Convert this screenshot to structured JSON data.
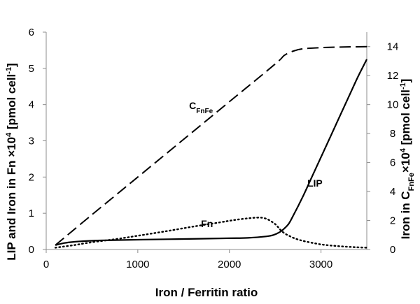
{
  "chart_data": {
    "type": "line",
    "xlabel": "Iron / Ferritin ratio",
    "ylabel_left": {
      "prefix": "LIP and Iron in Fn ×10",
      "sup": "4",
      "unit_main": " [pmol cell",
      "unit_sup": "-1",
      "unit_end": "]"
    },
    "ylabel_right": {
      "prefix": "Iron in C",
      "sub": "FnFe",
      "mid": "×10",
      "sup": "4",
      "unit_main": " [pmol cell",
      "unit_sup": "-1",
      "unit_end": "]"
    },
    "xlim": [
      0,
      3500
    ],
    "ylim_left": [
      0,
      6
    ],
    "ylim_right": [
      0,
      15
    ],
    "xticks": [
      "0",
      "1000",
      "2000",
      "3000"
    ],
    "xtick_values": [
      0,
      1000,
      2000,
      3000
    ],
    "yticks_left": [
      "0",
      "1",
      "2",
      "3",
      "4",
      "5",
      "6"
    ],
    "ytick_left_values": [
      0,
      1,
      2,
      3,
      4,
      5,
      6
    ],
    "yticks_right": [
      "0",
      "2",
      "4",
      "6",
      "8",
      "10",
      "12",
      "14"
    ],
    "ytick_right_values": [
      0,
      2,
      4,
      6,
      8,
      10,
      12,
      14
    ],
    "grid": false,
    "series": [
      {
        "name": "LIP",
        "axis": "left",
        "style": "solid",
        "x": [
          100,
          200,
          300,
          400,
          600,
          1000,
          1500,
          2000,
          2200,
          2400,
          2480,
          2550,
          2600,
          2650,
          2700,
          2800,
          2900,
          3000,
          3100,
          3200,
          3300,
          3400,
          3500
        ],
        "y": [
          0.12,
          0.18,
          0.21,
          0.23,
          0.25,
          0.27,
          0.29,
          0.31,
          0.32,
          0.36,
          0.4,
          0.48,
          0.58,
          0.72,
          0.95,
          1.45,
          2.0,
          2.55,
          3.1,
          3.65,
          4.2,
          4.75,
          5.25
        ]
      },
      {
        "name": "Fn",
        "axis": "left",
        "style": "dotted",
        "x": [
          100,
          300,
          500,
          800,
          1000,
          1300,
          1600,
          1900,
          2100,
          2300,
          2400,
          2500,
          2550,
          2600,
          2650,
          2700,
          2800,
          3000,
          3200,
          3400,
          3500
        ],
        "y": [
          0.05,
          0.12,
          0.2,
          0.3,
          0.38,
          0.5,
          0.63,
          0.75,
          0.83,
          0.88,
          0.85,
          0.7,
          0.56,
          0.45,
          0.38,
          0.32,
          0.24,
          0.14,
          0.09,
          0.06,
          0.05
        ]
      },
      {
        "name": "CFnFe",
        "axis": "right",
        "style": "dashed",
        "x": [
          100,
          500,
          1000,
          1500,
          2000,
          2500,
          2600,
          2700,
          2800,
          3000,
          3200,
          3500
        ],
        "y": [
          0.3,
          2.4,
          5.0,
          7.6,
          10.2,
          12.8,
          13.4,
          13.7,
          13.85,
          13.93,
          13.97,
          14.0
        ]
      }
    ],
    "annotations": [
      {
        "text": "C",
        "sub": "FnFe",
        "series": "CFnFe",
        "x": 1560,
        "y_left": 3.88
      },
      {
        "text": "LIP",
        "series": "LIP",
        "x": 2850,
        "y_left": 1.74
      },
      {
        "text": "Fn",
        "series": "Fn",
        "x": 1690,
        "y_left": 0.62
      }
    ]
  }
}
